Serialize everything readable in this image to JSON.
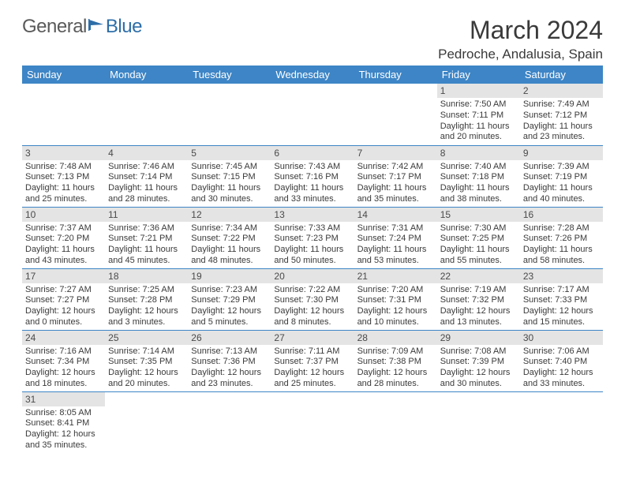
{
  "logo": {
    "part1": "General",
    "part2": "Blue"
  },
  "title": "March 2024",
  "location": "Pedroche, Andalusia, Spain",
  "colors": {
    "header_bg": "#3d85c6",
    "header_fg": "#ffffff",
    "daynum_bg": "#e4e4e4",
    "rule": "#3d85c6",
    "text": "#3a3a3a",
    "logo_gray": "#5a5a5a",
    "logo_blue": "#2d6ea8"
  },
  "weekdays": [
    "Sunday",
    "Monday",
    "Tuesday",
    "Wednesday",
    "Thursday",
    "Friday",
    "Saturday"
  ],
  "grid": [
    [
      null,
      null,
      null,
      null,
      null,
      {
        "n": "1",
        "sr": "Sunrise: 7:50 AM",
        "ss": "Sunset: 7:11 PM",
        "dl": "Daylight: 11 hours and 20 minutes."
      },
      {
        "n": "2",
        "sr": "Sunrise: 7:49 AM",
        "ss": "Sunset: 7:12 PM",
        "dl": "Daylight: 11 hours and 23 minutes."
      }
    ],
    [
      {
        "n": "3",
        "sr": "Sunrise: 7:48 AM",
        "ss": "Sunset: 7:13 PM",
        "dl": "Daylight: 11 hours and 25 minutes."
      },
      {
        "n": "4",
        "sr": "Sunrise: 7:46 AM",
        "ss": "Sunset: 7:14 PM",
        "dl": "Daylight: 11 hours and 28 minutes."
      },
      {
        "n": "5",
        "sr": "Sunrise: 7:45 AM",
        "ss": "Sunset: 7:15 PM",
        "dl": "Daylight: 11 hours and 30 minutes."
      },
      {
        "n": "6",
        "sr": "Sunrise: 7:43 AM",
        "ss": "Sunset: 7:16 PM",
        "dl": "Daylight: 11 hours and 33 minutes."
      },
      {
        "n": "7",
        "sr": "Sunrise: 7:42 AM",
        "ss": "Sunset: 7:17 PM",
        "dl": "Daylight: 11 hours and 35 minutes."
      },
      {
        "n": "8",
        "sr": "Sunrise: 7:40 AM",
        "ss": "Sunset: 7:18 PM",
        "dl": "Daylight: 11 hours and 38 minutes."
      },
      {
        "n": "9",
        "sr": "Sunrise: 7:39 AM",
        "ss": "Sunset: 7:19 PM",
        "dl": "Daylight: 11 hours and 40 minutes."
      }
    ],
    [
      {
        "n": "10",
        "sr": "Sunrise: 7:37 AM",
        "ss": "Sunset: 7:20 PM",
        "dl": "Daylight: 11 hours and 43 minutes."
      },
      {
        "n": "11",
        "sr": "Sunrise: 7:36 AM",
        "ss": "Sunset: 7:21 PM",
        "dl": "Daylight: 11 hours and 45 minutes."
      },
      {
        "n": "12",
        "sr": "Sunrise: 7:34 AM",
        "ss": "Sunset: 7:22 PM",
        "dl": "Daylight: 11 hours and 48 minutes."
      },
      {
        "n": "13",
        "sr": "Sunrise: 7:33 AM",
        "ss": "Sunset: 7:23 PM",
        "dl": "Daylight: 11 hours and 50 minutes."
      },
      {
        "n": "14",
        "sr": "Sunrise: 7:31 AM",
        "ss": "Sunset: 7:24 PM",
        "dl": "Daylight: 11 hours and 53 minutes."
      },
      {
        "n": "15",
        "sr": "Sunrise: 7:30 AM",
        "ss": "Sunset: 7:25 PM",
        "dl": "Daylight: 11 hours and 55 minutes."
      },
      {
        "n": "16",
        "sr": "Sunrise: 7:28 AM",
        "ss": "Sunset: 7:26 PM",
        "dl": "Daylight: 11 hours and 58 minutes."
      }
    ],
    [
      {
        "n": "17",
        "sr": "Sunrise: 7:27 AM",
        "ss": "Sunset: 7:27 PM",
        "dl": "Daylight: 12 hours and 0 minutes."
      },
      {
        "n": "18",
        "sr": "Sunrise: 7:25 AM",
        "ss": "Sunset: 7:28 PM",
        "dl": "Daylight: 12 hours and 3 minutes."
      },
      {
        "n": "19",
        "sr": "Sunrise: 7:23 AM",
        "ss": "Sunset: 7:29 PM",
        "dl": "Daylight: 12 hours and 5 minutes."
      },
      {
        "n": "20",
        "sr": "Sunrise: 7:22 AM",
        "ss": "Sunset: 7:30 PM",
        "dl": "Daylight: 12 hours and 8 minutes."
      },
      {
        "n": "21",
        "sr": "Sunrise: 7:20 AM",
        "ss": "Sunset: 7:31 PM",
        "dl": "Daylight: 12 hours and 10 minutes."
      },
      {
        "n": "22",
        "sr": "Sunrise: 7:19 AM",
        "ss": "Sunset: 7:32 PM",
        "dl": "Daylight: 12 hours and 13 minutes."
      },
      {
        "n": "23",
        "sr": "Sunrise: 7:17 AM",
        "ss": "Sunset: 7:33 PM",
        "dl": "Daylight: 12 hours and 15 minutes."
      }
    ],
    [
      {
        "n": "24",
        "sr": "Sunrise: 7:16 AM",
        "ss": "Sunset: 7:34 PM",
        "dl": "Daylight: 12 hours and 18 minutes."
      },
      {
        "n": "25",
        "sr": "Sunrise: 7:14 AM",
        "ss": "Sunset: 7:35 PM",
        "dl": "Daylight: 12 hours and 20 minutes."
      },
      {
        "n": "26",
        "sr": "Sunrise: 7:13 AM",
        "ss": "Sunset: 7:36 PM",
        "dl": "Daylight: 12 hours and 23 minutes."
      },
      {
        "n": "27",
        "sr": "Sunrise: 7:11 AM",
        "ss": "Sunset: 7:37 PM",
        "dl": "Daylight: 12 hours and 25 minutes."
      },
      {
        "n": "28",
        "sr": "Sunrise: 7:09 AM",
        "ss": "Sunset: 7:38 PM",
        "dl": "Daylight: 12 hours and 28 minutes."
      },
      {
        "n": "29",
        "sr": "Sunrise: 7:08 AM",
        "ss": "Sunset: 7:39 PM",
        "dl": "Daylight: 12 hours and 30 minutes."
      },
      {
        "n": "30",
        "sr": "Sunrise: 7:06 AM",
        "ss": "Sunset: 7:40 PM",
        "dl": "Daylight: 12 hours and 33 minutes."
      }
    ],
    [
      {
        "n": "31",
        "sr": "Sunrise: 8:05 AM",
        "ss": "Sunset: 8:41 PM",
        "dl": "Daylight: 12 hours and 35 minutes."
      },
      null,
      null,
      null,
      null,
      null,
      null
    ]
  ]
}
